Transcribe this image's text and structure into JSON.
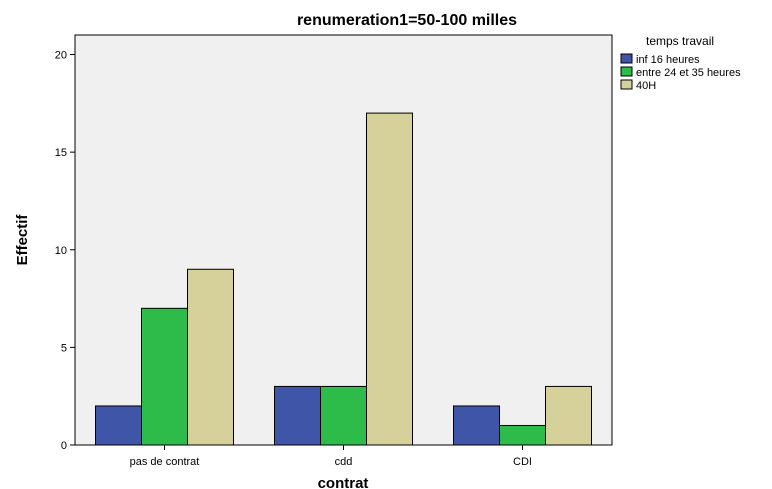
{
  "chart_data": {
    "type": "bar",
    "title": "renumeration1=50-100 milles",
    "xlabel": "contrat",
    "ylabel": "Effectif",
    "categories": [
      "pas de contrat",
      "cdd",
      "CDI"
    ],
    "series": [
      {
        "name": "inf 16 heures",
        "values": [
          2,
          3,
          2
        ],
        "color": "#3f55a8"
      },
      {
        "name": "entre 24 et 35 heures",
        "values": [
          7,
          3,
          1
        ],
        "color": "#2dbb4a"
      },
      {
        "name": "40H",
        "values": [
          9,
          17,
          3
        ],
        "color": "#d6d09a"
      }
    ],
    "ylim": [
      0,
      21
    ],
    "yticks": [
      0,
      5,
      10,
      15,
      20
    ],
    "grid": false,
    "legend": {
      "title": "temps travail",
      "placement": "right-top"
    },
    "plot_background": "#f0f0f0"
  }
}
